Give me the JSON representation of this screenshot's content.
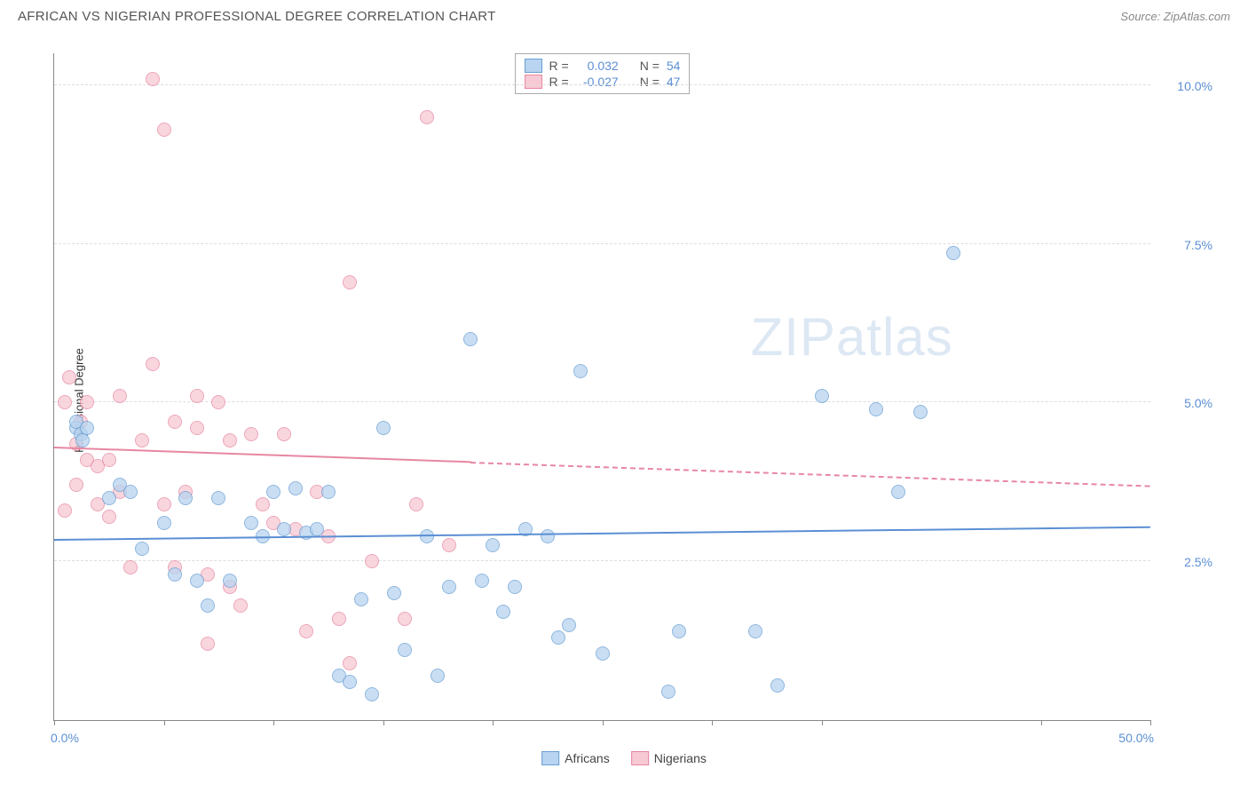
{
  "header": {
    "title": "AFRICAN VS NIGERIAN PROFESSIONAL DEGREE CORRELATION CHART",
    "source_label": "Source:",
    "source_value": "ZipAtlas.com"
  },
  "chart": {
    "type": "scatter",
    "y_label": "Professional Degree",
    "watermark": {
      "bold": "ZIP",
      "light": "atlas"
    },
    "xlim": [
      0,
      50
    ],
    "ylim": [
      0,
      10.5
    ],
    "x_ticks": [
      0,
      5,
      10,
      15,
      20,
      25,
      30,
      35,
      45,
      50
    ],
    "x_tick_labels": {
      "0": "0.0%",
      "50": "50.0%"
    },
    "y_gridlines": [
      2.5,
      5.0,
      7.5,
      10.0
    ],
    "y_tick_labels": [
      "2.5%",
      "5.0%",
      "7.5%",
      "10.0%"
    ],
    "background_color": "#ffffff",
    "grid_color": "#dddddd",
    "axis_color": "#888888",
    "series": {
      "africans": {
        "label": "Africans",
        "fill": "#b8d4f0",
        "stroke": "#6a9fd4",
        "opacity": 0.75,
        "marker_size": 16,
        "r_label": "R =",
        "r_value": "0.032",
        "n_label": "N =",
        "n_value": "54",
        "trend": {
          "x0": 0,
          "y0": 2.85,
          "x1": 50,
          "y1": 3.05,
          "color": "#5b8fd4",
          "dash_from_x": null
        },
        "points": [
          [
            1.0,
            4.6
          ],
          [
            1.0,
            4.7
          ],
          [
            1.2,
            4.5
          ],
          [
            1.3,
            4.4
          ],
          [
            1.5,
            4.6
          ],
          [
            3.0,
            3.7
          ],
          [
            2.5,
            3.5
          ],
          [
            3.5,
            3.6
          ],
          [
            4.0,
            2.7
          ],
          [
            5.0,
            3.1
          ],
          [
            5.5,
            2.3
          ],
          [
            6.0,
            3.5
          ],
          [
            6.5,
            2.2
          ],
          [
            7.0,
            1.8
          ],
          [
            7.5,
            3.5
          ],
          [
            8.0,
            2.2
          ],
          [
            9.0,
            3.1
          ],
          [
            9.5,
            2.9
          ],
          [
            10.0,
            3.6
          ],
          [
            10.5,
            3.0
          ],
          [
            11.0,
            3.65
          ],
          [
            11.5,
            2.95
          ],
          [
            12.0,
            3.0
          ],
          [
            12.5,
            3.6
          ],
          [
            13.0,
            0.7
          ],
          [
            13.5,
            0.6
          ],
          [
            14.0,
            1.9
          ],
          [
            14.5,
            0.4
          ],
          [
            15.0,
            4.6
          ],
          [
            15.5,
            2.0
          ],
          [
            16.0,
            1.1
          ],
          [
            17.0,
            2.9
          ],
          [
            17.5,
            0.7
          ],
          [
            18.0,
            2.1
          ],
          [
            19.0,
            6.0
          ],
          [
            19.5,
            2.2
          ],
          [
            20.0,
            2.75
          ],
          [
            20.5,
            1.7
          ],
          [
            21.0,
            2.1
          ],
          [
            21.5,
            3.0
          ],
          [
            22.5,
            2.9
          ],
          [
            23.0,
            1.3
          ],
          [
            23.5,
            1.5
          ],
          [
            24.0,
            5.5
          ],
          [
            28.0,
            0.45
          ],
          [
            28.5,
            1.4
          ],
          [
            32.0,
            1.4
          ],
          [
            33.0,
            0.55
          ],
          [
            35.0,
            5.1
          ],
          [
            37.5,
            4.9
          ],
          [
            39.5,
            4.85
          ],
          [
            41.0,
            7.35
          ],
          [
            38.5,
            3.6
          ],
          [
            25.0,
            1.05
          ]
        ]
      },
      "nigerians": {
        "label": "Nigerians",
        "fill": "#f7c9d4",
        "stroke": "#e787a2",
        "opacity": 0.75,
        "marker_size": 16,
        "r_label": "R =",
        "r_value": "-0.027",
        "n_label": "N =",
        "n_value": "47",
        "trend": {
          "x0": 0,
          "y0": 4.3,
          "x1": 50,
          "y1": 3.7,
          "color": "#e787a2",
          "dash_from_x": 19
        },
        "points": [
          [
            0.5,
            5.0
          ],
          [
            0.7,
            5.4
          ],
          [
            1.0,
            3.7
          ],
          [
            1.2,
            4.7
          ],
          [
            1.5,
            5.0
          ],
          [
            1.5,
            4.1
          ],
          [
            2.0,
            4.0
          ],
          [
            2.0,
            3.4
          ],
          [
            2.5,
            3.2
          ],
          [
            2.5,
            4.1
          ],
          [
            3.0,
            5.1
          ],
          [
            3.0,
            3.6
          ],
          [
            3.5,
            2.4
          ],
          [
            4.0,
            4.4
          ],
          [
            4.5,
            10.1
          ],
          [
            5.0,
            9.3
          ],
          [
            4.5,
            5.6
          ],
          [
            5.0,
            3.4
          ],
          [
            5.5,
            2.4
          ],
          [
            5.5,
            4.7
          ],
          [
            6.0,
            3.6
          ],
          [
            6.5,
            5.1
          ],
          [
            6.5,
            4.6
          ],
          [
            7.0,
            1.2
          ],
          [
            7.0,
            2.3
          ],
          [
            7.5,
            5.0
          ],
          [
            8.0,
            4.4
          ],
          [
            8.5,
            1.8
          ],
          [
            9.0,
            4.5
          ],
          [
            9.5,
            3.4
          ],
          [
            10.0,
            3.1
          ],
          [
            10.5,
            4.5
          ],
          [
            11.0,
            3.0
          ],
          [
            11.5,
            1.4
          ],
          [
            12.0,
            3.6
          ],
          [
            12.5,
            2.9
          ],
          [
            13.0,
            1.6
          ],
          [
            13.5,
            6.9
          ],
          [
            13.5,
            0.9
          ],
          [
            16.0,
            1.6
          ],
          [
            16.5,
            3.4
          ],
          [
            17.0,
            9.5
          ],
          [
            18.0,
            2.75
          ],
          [
            14.5,
            2.5
          ],
          [
            1.0,
            4.35
          ],
          [
            0.5,
            3.3
          ],
          [
            8.0,
            2.1
          ]
        ]
      }
    },
    "bottom_legend": [
      {
        "key": "africans",
        "label": "Africans"
      },
      {
        "key": "nigerians",
        "label": "Nigerians"
      }
    ]
  }
}
